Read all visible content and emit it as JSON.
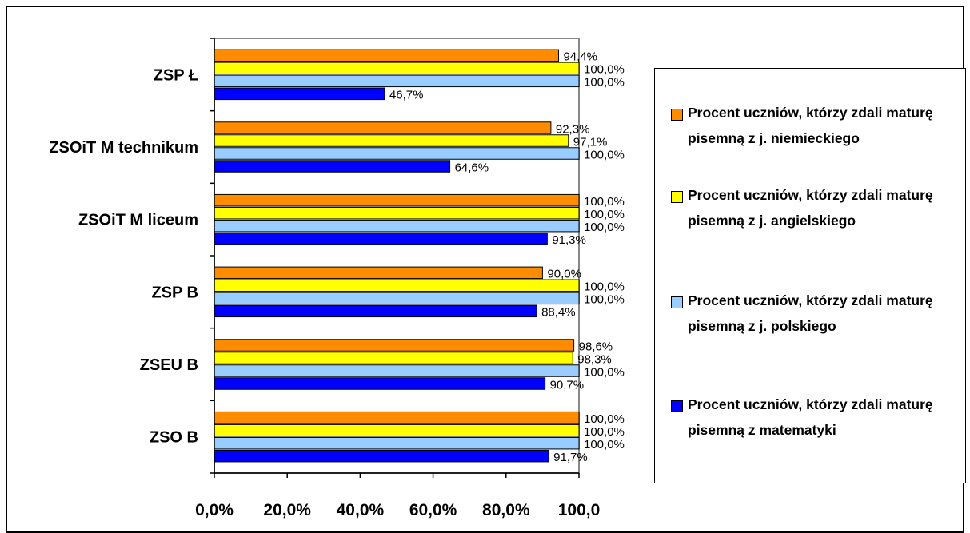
{
  "chart_data": {
    "type": "bar",
    "orientation": "horizontal",
    "categories": [
      "ZSP Ł",
      "ZSOiT M technikum",
      "ZSOiT M   liceum",
      "ZSP B",
      "ZSEU B",
      "ZSO B"
    ],
    "series": [
      {
        "name": "Procent uczniów, którzy zdali maturę pisemną z j. niemieckiego",
        "color": "#FF8C00",
        "values": [
          94.4,
          92.3,
          100.0,
          90.0,
          98.6,
          100.0
        ],
        "labels": [
          "94,4%",
          "92,3%",
          "100,0%",
          "90,0%",
          "98,6%",
          "100,0%"
        ]
      },
      {
        "name": "Procent uczniów, którzy zdali maturę pisemną z j. angielskiego",
        "color": "#FFFF00",
        "values": [
          100.0,
          97.1,
          100.0,
          100.0,
          98.3,
          100.0
        ],
        "labels": [
          "100,0%",
          "97,1%",
          "100,0%",
          "100,0%",
          "98,3%",
          "100,0%"
        ]
      },
      {
        "name": "Procent uczniów, którzy zdali maturę pisemną z j. polskiego",
        "color": "#99CCFF",
        "values": [
          100.0,
          100.0,
          100.0,
          100.0,
          100.0,
          100.0
        ],
        "labels": [
          "100,0%",
          "100,0%",
          "100,0%",
          "100,0%",
          "100,0%",
          "100,0%"
        ]
      },
      {
        "name": "Procent uczniów, którzy zdali maturę pisemną z matematyki",
        "color": "#0000FF",
        "values": [
          46.7,
          64.6,
          91.3,
          88.4,
          90.7,
          91.7
        ],
        "labels": [
          "46,7%",
          "64,6%",
          "91,3%",
          "88,4%",
          "90,7%",
          "91,7%"
        ]
      }
    ],
    "xlim": [
      0,
      100
    ],
    "x_ticks": [
      0,
      20,
      40,
      60,
      80,
      100
    ],
    "x_tick_labels": [
      "0,0%",
      "20,0%",
      "40,0%",
      "60,0%",
      "80,0%",
      "100,0"
    ],
    "legend_position": "right",
    "grid": false
  }
}
